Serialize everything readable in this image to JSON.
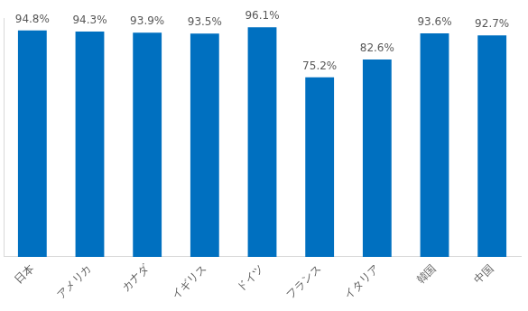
{
  "chart_data": {
    "type": "bar",
    "categories": [
      "日本",
      "アメリカ",
      "カナダ",
      "イギリス",
      "ドイツ",
      "フランス",
      "イタリア",
      "韓国",
      "中国"
    ],
    "values": [
      94.8,
      94.3,
      93.9,
      93.5,
      96.1,
      75.2,
      82.6,
      93.6,
      92.7
    ],
    "value_labels": [
      "94.8%",
      "94.3%",
      "93.9%",
      "93.5%",
      "96.1%",
      "75.2%",
      "82.6%",
      "93.6%",
      "92.7%"
    ],
    "color": "#0070c0",
    "ylim": [
      0,
      100
    ],
    "grid": false,
    "data_labels": true,
    "tick_labels": "x"
  }
}
